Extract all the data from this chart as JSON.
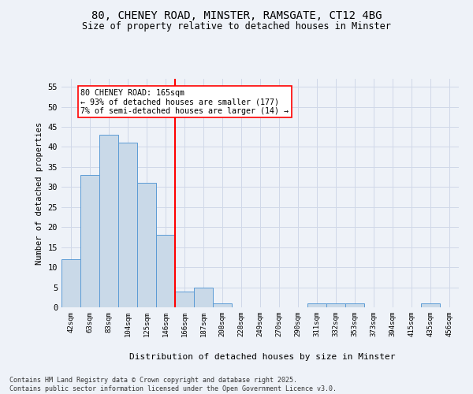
{
  "title_line1": "80, CHENEY ROAD, MINSTER, RAMSGATE, CT12 4BG",
  "title_line2": "Size of property relative to detached houses in Minster",
  "xlabel": "Distribution of detached houses by size in Minster",
  "ylabel": "Number of detached properties",
  "bar_labels": [
    "42sqm",
    "63sqm",
    "83sqm",
    "104sqm",
    "125sqm",
    "146sqm",
    "166sqm",
    "187sqm",
    "208sqm",
    "228sqm",
    "249sqm",
    "270sqm",
    "290sqm",
    "311sqm",
    "332sqm",
    "353sqm",
    "373sqm",
    "394sqm",
    "415sqm",
    "435sqm",
    "456sqm"
  ],
  "bar_values": [
    12,
    33,
    43,
    41,
    31,
    18,
    4,
    5,
    1,
    0,
    0,
    0,
    0,
    1,
    1,
    1,
    0,
    0,
    0,
    1,
    0
  ],
  "bar_color": "#c9d9e8",
  "bar_edge_color": "#5b9bd5",
  "grid_color": "#d0d8e8",
  "bg_color": "#eef2f8",
  "vline_color": "red",
  "annotation_text": "80 CHENEY ROAD: 165sqm\n← 93% of detached houses are smaller (177)\n7% of semi-detached houses are larger (14) →",
  "annotation_box_color": "white",
  "annotation_box_edge": "red",
  "ylim": [
    0,
    57
  ],
  "yticks": [
    0,
    5,
    10,
    15,
    20,
    25,
    30,
    35,
    40,
    45,
    50,
    55
  ],
  "footer_line1": "Contains HM Land Registry data © Crown copyright and database right 2025.",
  "footer_line2": "Contains public sector information licensed under the Open Government Licence v3.0."
}
